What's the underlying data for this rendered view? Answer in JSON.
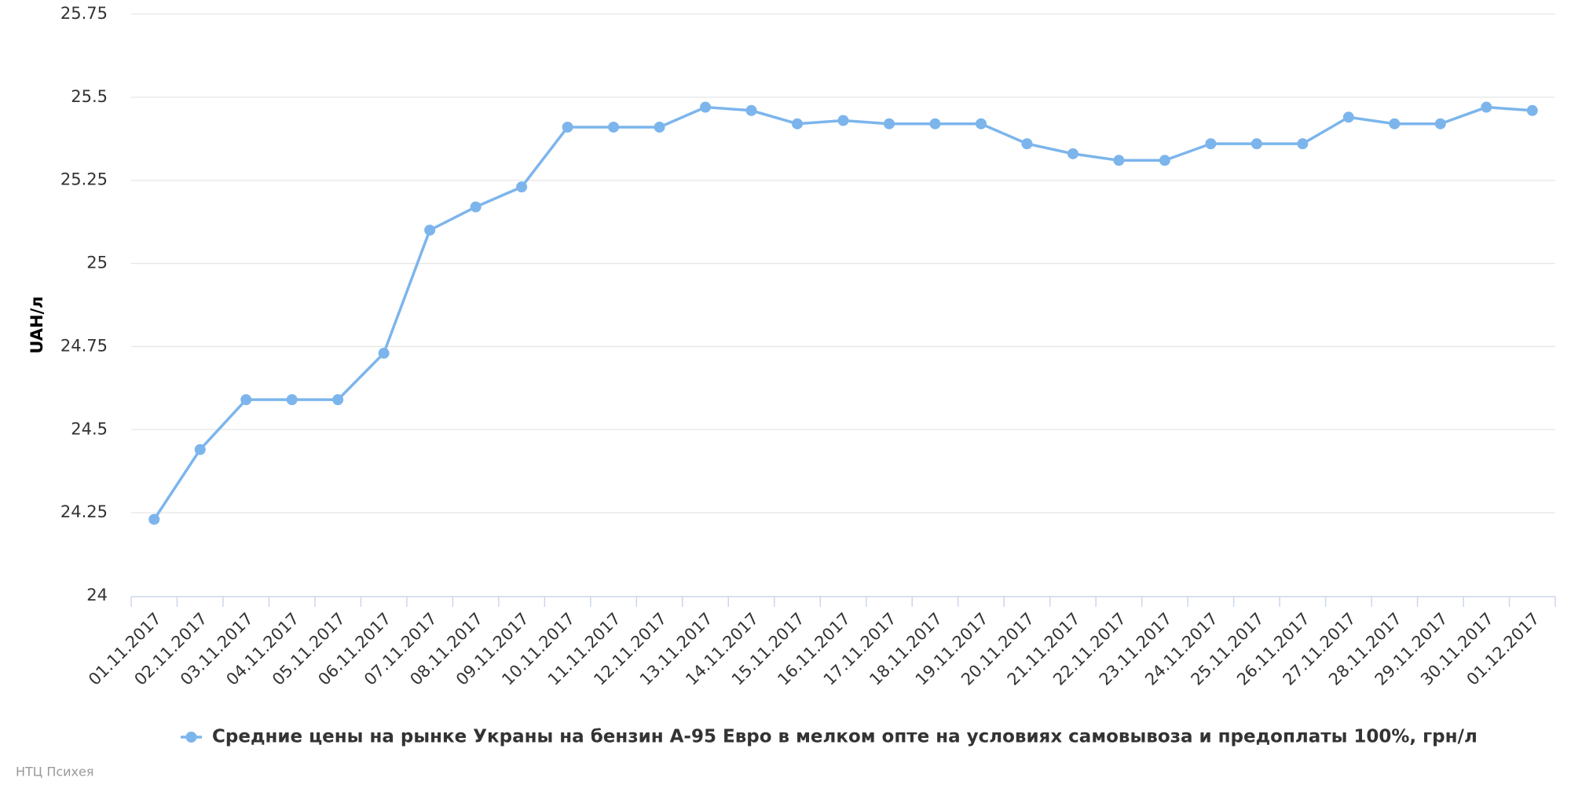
{
  "chart_data": {
    "type": "line",
    "y_label": "UAH/л",
    "categories": [
      "01.11.2017",
      "02.11.2017",
      "03.11.2017",
      "04.11.2017",
      "05.11.2017",
      "06.11.2017",
      "07.11.2017",
      "08.11.2017",
      "09.11.2017",
      "10.11.2017",
      "11.11.2017",
      "12.11.2017",
      "13.11.2017",
      "14.11.2017",
      "15.11.2017",
      "16.11.2017",
      "17.11.2017",
      "18.11.2017",
      "19.11.2017",
      "20.11.2017",
      "21.11.2017",
      "22.11.2017",
      "23.11.2017",
      "24.11.2017",
      "25.11.2017",
      "26.11.2017",
      "27.11.2017",
      "28.11.2017",
      "29.11.2017",
      "30.11.2017",
      "01.12.2017"
    ],
    "series": [
      {
        "name": "Средние цены на рынке Украны на бензин А-95 Евро в мелком опте на условиях самовывоза и предоплаты 100%, грн/л",
        "color": "#7cb5ec",
        "values": [
          24.23,
          24.44,
          24.59,
          24.59,
          24.59,
          24.73,
          25.1,
          25.17,
          25.23,
          25.41,
          25.41,
          25.41,
          25.47,
          25.46,
          25.42,
          25.43,
          25.42,
          25.42,
          25.42,
          25.36,
          25.33,
          25.31,
          25.31,
          25.36,
          25.36,
          25.36,
          25.44,
          25.42,
          25.42,
          25.47,
          25.46
        ]
      }
    ],
    "ylim": [
      24,
      25.75
    ],
    "yticks": [
      24,
      24.25,
      24.5,
      24.75,
      25,
      25.25,
      25.5,
      25.75
    ],
    "grid": true,
    "credits": "НТЦ Психея"
  }
}
